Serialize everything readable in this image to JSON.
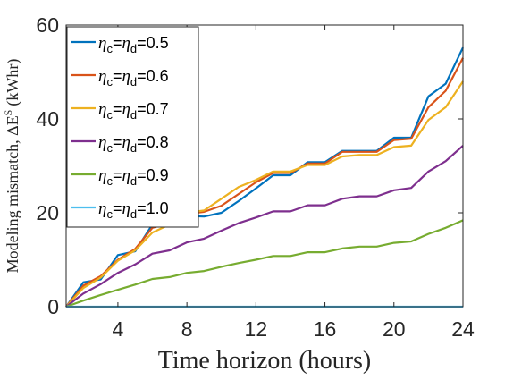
{
  "chart_data": {
    "type": "line",
    "xlabel": "Time horizon (hours)",
    "ylabel": "Modeling mismatch, ΔE",
    "ylabel_superscript": "S",
    "ylabel_unit": "(kWhr)",
    "xlim": [
      1,
      24
    ],
    "ylim": [
      0,
      60
    ],
    "x_ticks": [
      4,
      8,
      12,
      16,
      20,
      24
    ],
    "y_ticks": [
      0,
      20,
      40,
      60
    ],
    "grid": false,
    "legend_position": "top-left",
    "x": [
      1,
      2,
      3,
      4,
      5,
      6,
      7,
      8,
      9,
      10,
      11,
      12,
      13,
      14,
      15,
      16,
      17,
      18,
      19,
      20,
      21,
      22,
      23,
      24
    ],
    "series": [
      {
        "name": "ηc=ηd=0.5",
        "eta_label": "η",
        "c_sub": "c",
        "d_sub": "d",
        "value_text": "=0.5",
        "color": "#0072BD",
        "values": [
          0,
          5.2,
          5.8,
          11.0,
          11.8,
          17.5,
          18.5,
          19.3,
          19.2,
          20.0,
          22.5,
          25.2,
          28.0,
          28.0,
          30.8,
          30.8,
          33.2,
          33.2,
          33.2,
          36.0,
          36.0,
          44.8,
          47.5,
          55.2
        ]
      },
      {
        "name": "ηc=ηd=0.6",
        "eta_label": "η",
        "c_sub": "c",
        "d_sub": "d",
        "value_text": "=0.6",
        "color": "#D95319",
        "values": [
          0,
          4.5,
          6.5,
          10.0,
          12.3,
          16.8,
          17.8,
          19.8,
          20.2,
          21.5,
          24.0,
          26.5,
          28.5,
          28.5,
          30.5,
          30.5,
          33.0,
          33.0,
          33.0,
          35.5,
          35.8,
          42.5,
          46.0,
          53.0
        ]
      },
      {
        "name": "ηc=ηd=0.7",
        "eta_label": "η",
        "c_sub": "c",
        "d_sub": "d",
        "value_text": "=0.7",
        "color": "#EDB120",
        "values": [
          0,
          4.0,
          6.2,
          9.8,
          12.0,
          15.8,
          17.5,
          20.0,
          20.5,
          23.0,
          25.5,
          27.0,
          28.8,
          28.8,
          30.2,
          30.2,
          32.0,
          32.3,
          32.3,
          34.0,
          34.3,
          39.8,
          42.5,
          48.0
        ]
      },
      {
        "name": "ηc=ηd=0.8",
        "eta_label": "η",
        "c_sub": "c",
        "d_sub": "d",
        "value_text": "=0.8",
        "color": "#7E2F8E",
        "values": [
          0,
          2.8,
          4.8,
          7.2,
          9.0,
          11.3,
          12.0,
          13.7,
          14.5,
          16.2,
          17.8,
          19.0,
          20.3,
          20.3,
          21.6,
          21.6,
          23.0,
          23.5,
          23.5,
          24.8,
          25.3,
          28.8,
          31.0,
          34.3
        ]
      },
      {
        "name": "ηc=ηd=0.9",
        "eta_label": "η",
        "c_sub": "c",
        "d_sub": "d",
        "value_text": "=0.9",
        "color": "#77AC30",
        "values": [
          0,
          1.3,
          2.5,
          3.6,
          4.7,
          5.9,
          6.3,
          7.2,
          7.6,
          8.5,
          9.3,
          10.0,
          10.8,
          10.8,
          11.6,
          11.6,
          12.4,
          12.8,
          12.8,
          13.6,
          13.9,
          15.5,
          16.8,
          18.4
        ]
      },
      {
        "name": "ηc=ηd=1.0",
        "eta_label": "η",
        "c_sub": "c",
        "d_sub": "d",
        "value_text": "=1.0",
        "color": "#4DBEEE",
        "values": [
          0,
          0,
          0,
          0,
          0,
          0,
          0,
          0,
          0,
          0,
          0,
          0,
          0,
          0,
          0,
          0,
          0,
          0,
          0,
          0,
          0,
          0,
          0,
          0
        ]
      }
    ]
  }
}
